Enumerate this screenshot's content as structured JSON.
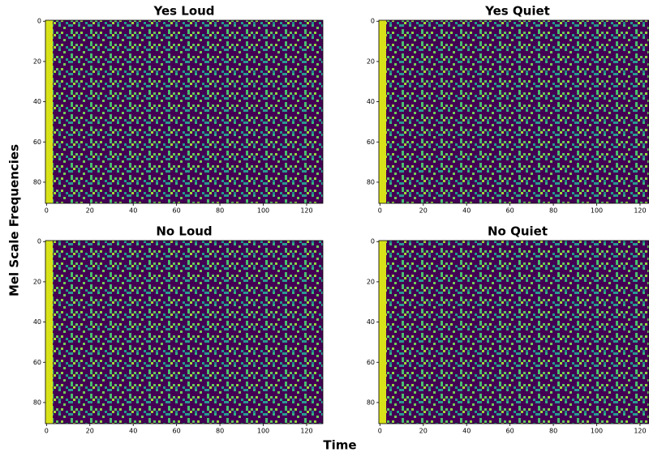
{
  "figure": {
    "xlabel": "Time",
    "ylabel": "Mel Scale Frequencies"
  },
  "chart_data": [
    {
      "type": "heatmap",
      "title": "Yes Loud",
      "xlim": [
        -0.5,
        127.5
      ],
      "ylim": [
        90.5,
        -0.5
      ],
      "xticks": [
        0,
        20,
        40,
        60,
        80,
        100,
        120
      ],
      "yticks": [
        0,
        20,
        40,
        60,
        80
      ]
    },
    {
      "type": "heatmap",
      "title": "Yes Quiet",
      "xlim": [
        -0.5,
        127.5
      ],
      "ylim": [
        90.5,
        -0.5
      ],
      "xticks": [
        0,
        20,
        40,
        60,
        80,
        100,
        120
      ],
      "yticks": [
        0,
        20,
        40,
        60,
        80
      ]
    },
    {
      "type": "heatmap",
      "title": "No Loud",
      "xlim": [
        -0.5,
        127.5
      ],
      "ylim": [
        90.5,
        -0.5
      ],
      "xticks": [
        0,
        20,
        40,
        60,
        80,
        100,
        120
      ],
      "yticks": [
        0,
        20,
        40,
        60,
        80
      ]
    },
    {
      "type": "heatmap",
      "title": "No Quiet",
      "xlim": [
        -0.5,
        127.5
      ],
      "ylim": [
        90.5,
        -0.5
      ],
      "xticks": [
        0,
        20,
        40,
        60,
        80,
        100,
        120
      ],
      "yticks": [
        0,
        20,
        40,
        60,
        80
      ]
    }
  ]
}
